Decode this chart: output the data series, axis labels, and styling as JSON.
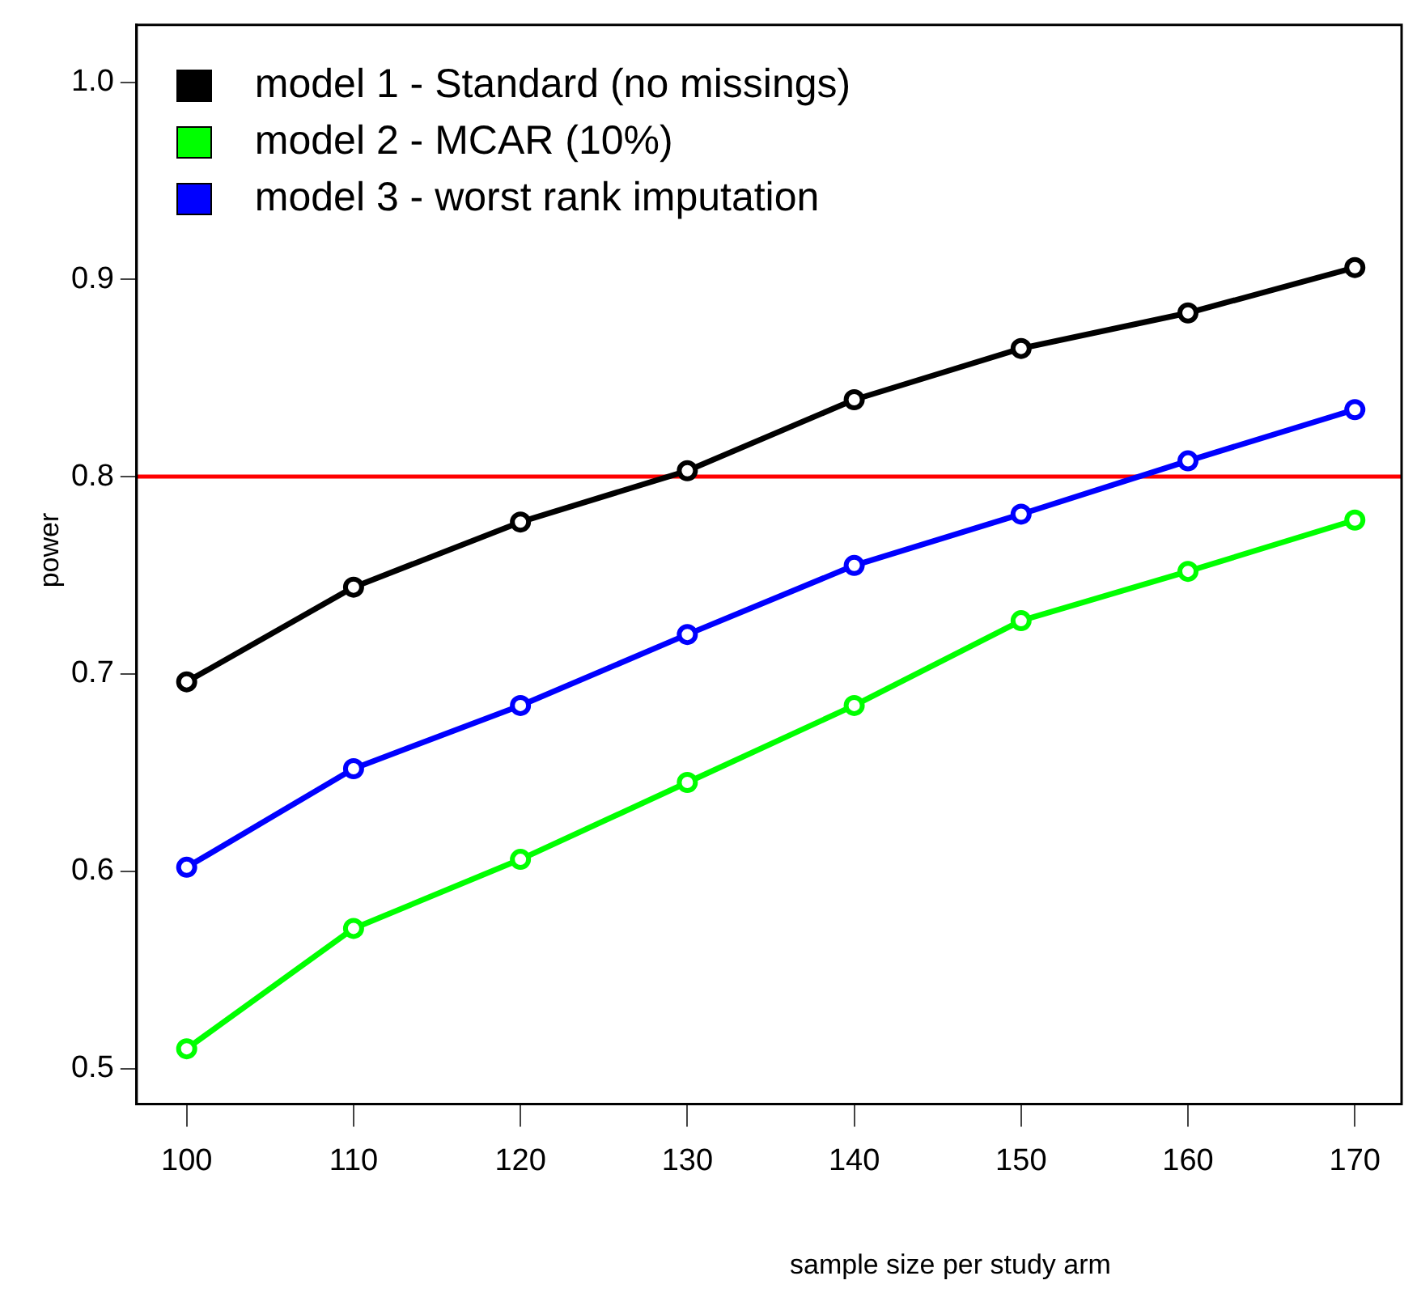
{
  "chart_data": {
    "type": "line",
    "xlabel": "sample size per study arm",
    "ylabel": "power",
    "x": [
      100,
      110,
      120,
      130,
      140,
      150,
      160,
      170
    ],
    "series": [
      {
        "name": "model 1 - Standard (no missings)",
        "color": "#000000",
        "values": [
          0.696,
          0.744,
          0.777,
          0.803,
          0.839,
          0.865,
          0.883,
          0.906
        ]
      },
      {
        "name": "model 2 - MCAR (10%)",
        "color": "#00ff00",
        "values": [
          0.51,
          0.571,
          0.606,
          0.645,
          0.684,
          0.727,
          0.752,
          0.778
        ]
      },
      {
        "name": "model 3 - worst rank imputation",
        "color": "#0000ff",
        "values": [
          0.602,
          0.652,
          0.684,
          0.72,
          0.755,
          0.781,
          0.808,
          0.834
        ]
      }
    ],
    "xlim": [
      97,
      172.8
    ],
    "xticks": [
      100,
      110,
      120,
      130,
      140,
      150,
      160,
      170
    ],
    "ylim": [
      0.482,
      1.029
    ],
    "yticks": [
      {
        "value": 0.5,
        "label": "0.5"
      },
      {
        "value": 0.6,
        "label": "0.6"
      },
      {
        "value": 0.7,
        "label": "0.7"
      },
      {
        "value": 0.8,
        "label": "0.8"
      },
      {
        "value": 0.9,
        "label": "0.9"
      },
      {
        "value": 1.0,
        "label": "1.0"
      }
    ],
    "ref_lines": [
      {
        "axis": "y",
        "value": 0.8,
        "color": "#ff0000"
      }
    ],
    "grid": false,
    "legend": "top left",
    "marker": "circle",
    "line_style": "solid"
  }
}
